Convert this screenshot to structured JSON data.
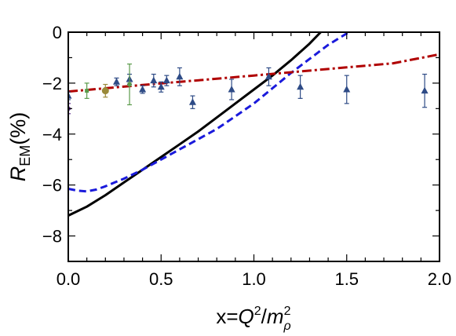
{
  "chart_data": {
    "type": "line",
    "title": "",
    "xlabel": "x=Q²/m²ρ",
    "ylabel": "R_EM(%)",
    "xlim": [
      0,
      2
    ],
    "ylim": [
      -9,
      0
    ],
    "x_ticks": [
      0.0,
      0.5,
      1.0,
      1.5,
      2.0
    ],
    "x_tick_labels": [
      "0.0",
      "0.5",
      "1.0",
      "1.5",
      "2.0"
    ],
    "y_ticks": [
      0,
      -2,
      -4,
      -6,
      -8
    ],
    "y_tick_labels": [
      "0",
      "−2",
      "−4",
      "−6",
      "−8"
    ],
    "grid": false,
    "legend": "none",
    "curves": [
      {
        "style": "solid",
        "color": "#000000",
        "x": [
          0.0,
          0.1,
          0.2,
          0.3,
          0.4,
          0.5,
          0.6,
          0.7,
          0.8,
          0.9,
          1.0,
          1.1,
          1.2,
          1.3,
          1.36
        ],
        "y": [
          -7.2,
          -6.85,
          -6.4,
          -5.9,
          -5.4,
          -4.9,
          -4.4,
          -3.9,
          -3.35,
          -2.8,
          -2.25,
          -1.7,
          -1.1,
          -0.45,
          0.0
        ]
      },
      {
        "style": "dashed",
        "color": "#1a1adb",
        "x": [
          0.0,
          0.05,
          0.1,
          0.15,
          0.2,
          0.25,
          0.3,
          0.4,
          0.5,
          0.6,
          0.7,
          0.8,
          0.9,
          1.0,
          1.1,
          1.2,
          1.3,
          1.4,
          1.5,
          1.52
        ],
        "y": [
          -6.15,
          -6.22,
          -6.25,
          -6.18,
          -6.05,
          -5.9,
          -5.75,
          -5.4,
          -5.0,
          -4.6,
          -4.2,
          -3.8,
          -3.3,
          -2.8,
          -2.2,
          -1.6,
          -1.05,
          -0.5,
          -0.05,
          0.0
        ]
      },
      {
        "style": "dashdot",
        "color": "#b00000",
        "x": [
          0.0,
          0.25,
          0.5,
          0.75,
          1.0,
          1.25,
          1.5,
          1.75,
          2.0
        ],
        "y": [
          -2.33,
          -2.17,
          -2.01,
          -1.86,
          -1.7,
          -1.54,
          -1.38,
          -1.22,
          -0.87
        ]
      }
    ],
    "data_points": [
      {
        "group": "triangle",
        "color": "#2e4b86",
        "x": 0.0,
        "y": -2.5,
        "err": 0.15
      },
      {
        "group": "triangle",
        "color": "#2e4b86",
        "x": 0.26,
        "y": -1.95,
        "err": 0.15
      },
      {
        "group": "triangle",
        "color": "#2e4b86",
        "x": 0.33,
        "y": -1.85,
        "err": 0.2
      },
      {
        "group": "triangle",
        "color": "#2e4b86",
        "x": 0.4,
        "y": -2.25,
        "err": 0.15
      },
      {
        "group": "triangle",
        "color": "#2e4b86",
        "x": 0.46,
        "y": -1.9,
        "err": 0.25
      },
      {
        "group": "triangle",
        "color": "#2e4b86",
        "x": 0.5,
        "y": -2.15,
        "err": 0.2
      },
      {
        "group": "triangle",
        "color": "#2e4b86",
        "x": 0.53,
        "y": -1.9,
        "err": 0.2
      },
      {
        "group": "triangle",
        "color": "#2e4b86",
        "x": 0.6,
        "y": -1.75,
        "err": 0.35
      },
      {
        "group": "triangle",
        "color": "#2e4b86",
        "x": 0.67,
        "y": -2.75,
        "err": 0.25
      },
      {
        "group": "triangle",
        "color": "#2e4b86",
        "x": 0.88,
        "y": -2.25,
        "err": 0.4
      },
      {
        "group": "triangle",
        "color": "#2e4b86",
        "x": 1.08,
        "y": -1.75,
        "err": 0.35
      },
      {
        "group": "triangle",
        "color": "#2e4b86",
        "x": 1.25,
        "y": -2.15,
        "err": 0.45
      },
      {
        "group": "triangle",
        "color": "#2e4b86",
        "x": 1.5,
        "y": -2.25,
        "err": 0.55
      },
      {
        "group": "triangle",
        "color": "#2e4b86",
        "x": 1.92,
        "y": -2.3,
        "err": 0.65
      },
      {
        "group": "square-green",
        "color": "#5a9a4a",
        "x": 0.1,
        "y": -2.3,
        "err": 0.3
      },
      {
        "group": "square-green",
        "color": "#5a9a4a",
        "x": 0.33,
        "y": -2.05,
        "err": 0.8
      },
      {
        "group": "circle-olive",
        "color": "#9a8a3a",
        "x": 0.2,
        "y": -2.3,
        "err": 0.25
      },
      {
        "group": "diamond-purple",
        "color": "#5a2a8a",
        "x": 0.0,
        "y": -3.0,
        "err": 0.2
      }
    ]
  }
}
